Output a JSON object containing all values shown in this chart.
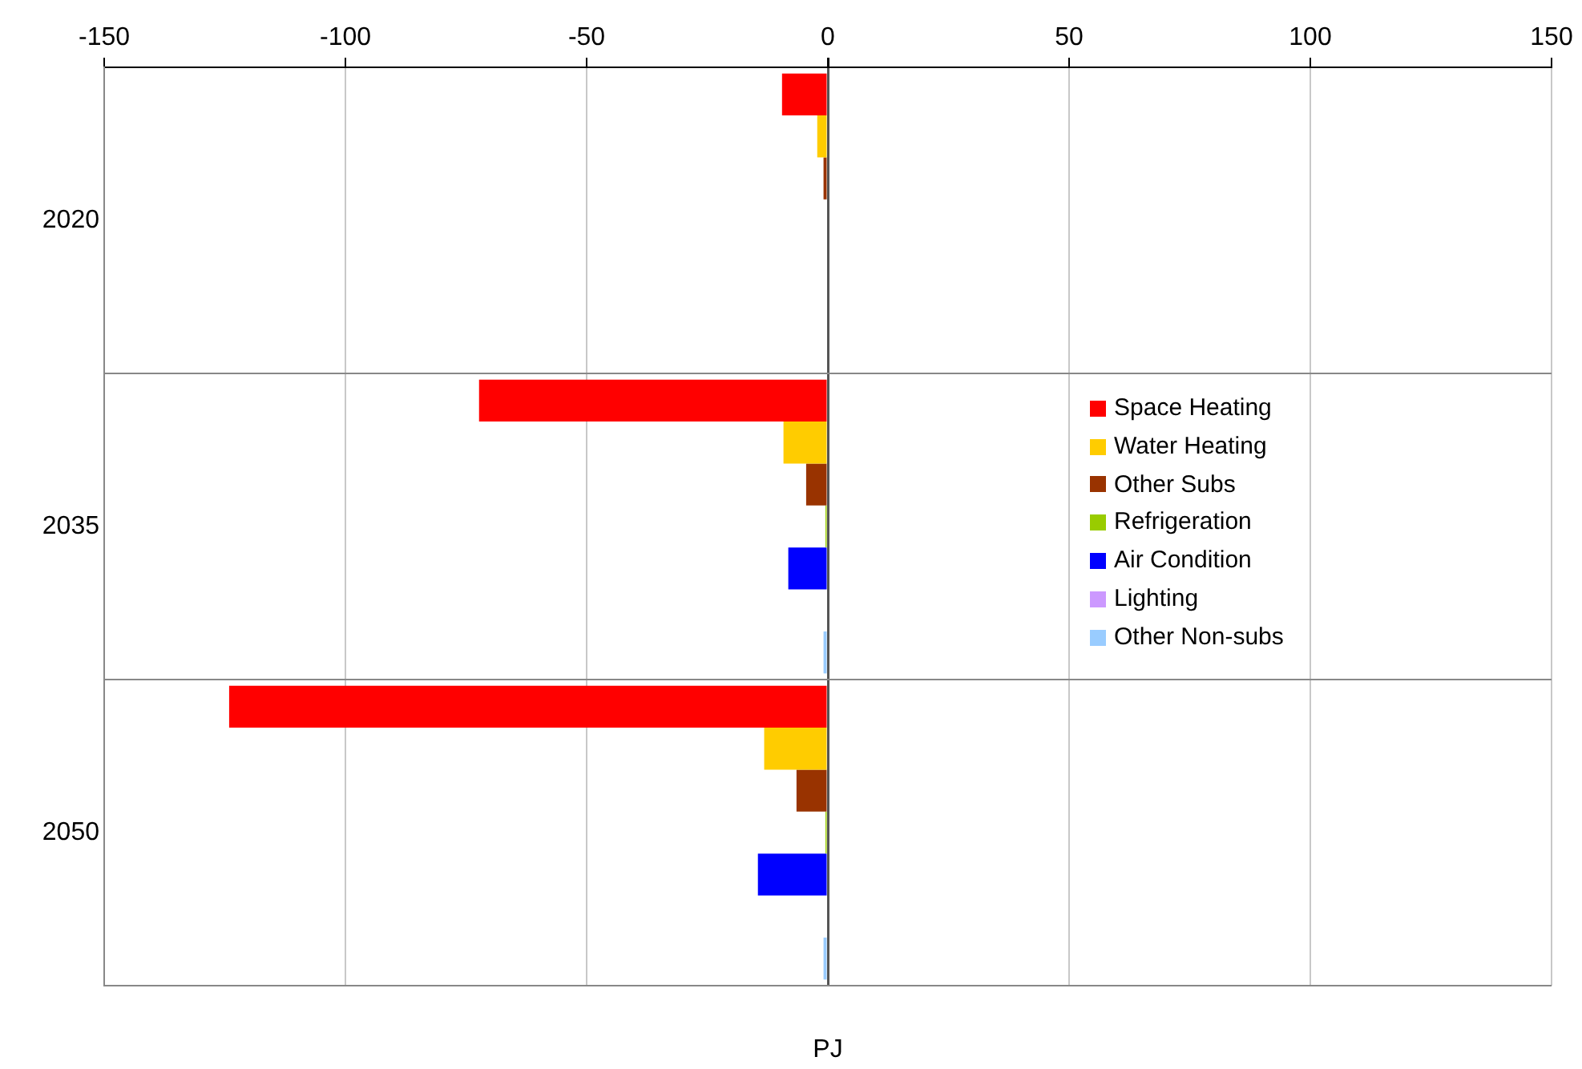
{
  "chart_data": {
    "type": "bar",
    "orientation": "horizontal",
    "xlabel": "PJ",
    "categories": [
      "2020",
      "2035",
      "2050"
    ],
    "series": [
      {
        "name": "Space Heating",
        "color": "#ff0000",
        "values": [
          -9.5,
          -72.3,
          -124.1
        ]
      },
      {
        "name": "Water Heating",
        "color": "#ffcc00",
        "values": [
          -2.2,
          -9.2,
          -13.2
        ]
      },
      {
        "name": "Other Subs",
        "color": "#993300",
        "values": [
          -0.9,
          -4.5,
          -6.5
        ]
      },
      {
        "name": "Refrigeration",
        "color": "#99cc00",
        "values": [
          null,
          -0.5,
          -0.5
        ]
      },
      {
        "name": "Air Condition",
        "color": "#0000ff",
        "values": [
          null,
          -8.2,
          -14.5
        ]
      },
      {
        "name": "Lighting",
        "color": "#cc99ff",
        "values": [
          0,
          0,
          0
        ]
      },
      {
        "name": "Other Non-subs",
        "color": "#99ccff",
        "values": [
          null,
          -0.9,
          -0.9
        ]
      }
    ],
    "xlim": [
      -150,
      150
    ],
    "xticks": [
      -150,
      -100,
      -50,
      0,
      50,
      100,
      150
    ],
    "grid": true,
    "legend": "right"
  }
}
